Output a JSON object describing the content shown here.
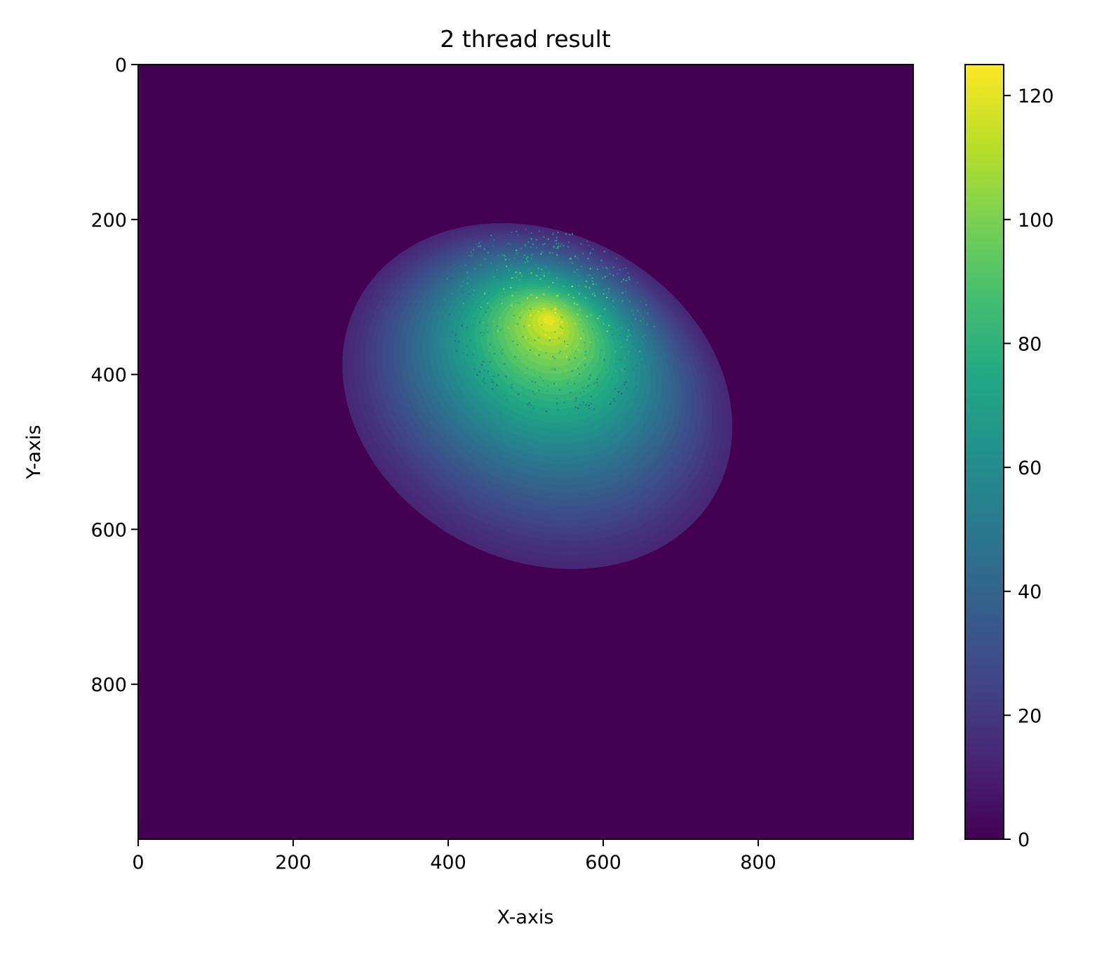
{
  "chart_data": {
    "type": "heatmap",
    "title": "2 thread result",
    "xlabel": "X-axis",
    "ylabel": "Y-axis",
    "xlim": [
      0,
      1000
    ],
    "ylim": [
      1000,
      0
    ],
    "y_axis_inverted": true,
    "x_ticks": [
      0,
      200,
      400,
      600,
      800
    ],
    "y_ticks": [
      0,
      200,
      400,
      600,
      800
    ],
    "x_tick_labels": [
      "0",
      "200",
      "400",
      "600",
      "800"
    ],
    "y_tick_labels": [
      "0",
      "200",
      "400",
      "600",
      "800"
    ],
    "colormap": "viridis",
    "colorbar": {
      "range": [
        0,
        125
      ],
      "ticks": [
        0,
        20,
        40,
        60,
        80,
        100,
        120
      ],
      "tick_labels": [
        "0",
        "20",
        "40",
        "60",
        "80",
        "100",
        "120"
      ]
    },
    "background_value": 0,
    "blob": {
      "shape": "ellipse",
      "center": [
        515,
        428
      ],
      "semi_axes": [
        262,
        211
      ],
      "rotation_deg": 28,
      "peak_location": [
        530,
        330
      ],
      "peak_value": 120,
      "edge_value": 14
    },
    "grid": false
  }
}
